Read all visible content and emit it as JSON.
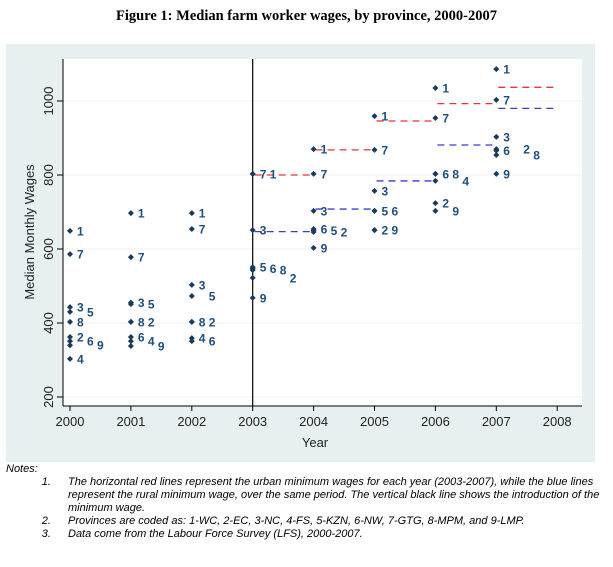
{
  "chart_data": {
    "type": "scatter",
    "title": "Figure 1: Median farm worker wages, by province, 2000-2007",
    "xlabel": "Year",
    "ylabel": "Median Monthly Wages",
    "xlim": [
      2000,
      2008
    ],
    "ylim": [
      200,
      1100
    ],
    "xticks": [
      "2000",
      "2001",
      "2002",
      "2003",
      "2004",
      "2005",
      "2006",
      "2007",
      "2008"
    ],
    "yticks": [
      "200",
      "400",
      "600",
      "800",
      "1000"
    ],
    "grid": true,
    "minimum_wage_introduction_year": 2003,
    "points": [
      {
        "year": 2000,
        "province": "1",
        "value": 649
      },
      {
        "year": 2000,
        "province": "7",
        "value": 586
      },
      {
        "year": 2000,
        "province": "3",
        "value": 443
      },
      {
        "year": 2000,
        "province": "5",
        "value": 430
      },
      {
        "year": 2000,
        "province": "8",
        "value": 403
      },
      {
        "year": 2000,
        "province": "2",
        "value": 362
      },
      {
        "year": 2000,
        "province": "6",
        "value": 351
      },
      {
        "year": 2000,
        "province": "9",
        "value": 340
      },
      {
        "year": 2000,
        "province": "4",
        "value": 303
      },
      {
        "year": 2001,
        "province": "1",
        "value": 697
      },
      {
        "year": 2001,
        "province": "7",
        "value": 578
      },
      {
        "year": 2001,
        "province": "3",
        "value": 455
      },
      {
        "year": 2001,
        "province": "5",
        "value": 451
      },
      {
        "year": 2001,
        "province": "8",
        "value": 403
      },
      {
        "year": 2001,
        "province": "2",
        "value": 403
      },
      {
        "year": 2001,
        "province": "6",
        "value": 362
      },
      {
        "year": 2001,
        "province": "4",
        "value": 351
      },
      {
        "year": 2001,
        "province": "9",
        "value": 338
      },
      {
        "year": 2002,
        "province": "1",
        "value": 697
      },
      {
        "year": 2002,
        "province": "7",
        "value": 654
      },
      {
        "year": 2002,
        "province": "3",
        "value": 503
      },
      {
        "year": 2002,
        "province": "5",
        "value": 473
      },
      {
        "year": 2002,
        "province": "8",
        "value": 403
      },
      {
        "year": 2002,
        "province": "2",
        "value": 403
      },
      {
        "year": 2002,
        "province": "4",
        "value": 359
      },
      {
        "year": 2002,
        "province": "6",
        "value": 351
      },
      {
        "year": 2003,
        "province": "7",
        "value": 803
      },
      {
        "year": 2003,
        "province": "1",
        "value": 803
      },
      {
        "year": 2003,
        "province": "3",
        "value": 651
      },
      {
        "year": 2003,
        "province": "5",
        "value": 551
      },
      {
        "year": 2003,
        "province": "6",
        "value": 547
      },
      {
        "year": 2003,
        "province": "8",
        "value": 543
      },
      {
        "year": 2003,
        "province": "2",
        "value": 522
      },
      {
        "year": 2003,
        "province": "9",
        "value": 468
      },
      {
        "year": 2004,
        "province": "1",
        "value": 870
      },
      {
        "year": 2004,
        "province": "7",
        "value": 803
      },
      {
        "year": 2004,
        "province": "3",
        "value": 703
      },
      {
        "year": 2004,
        "province": "6",
        "value": 654
      },
      {
        "year": 2004,
        "province": "5",
        "value": 650
      },
      {
        "year": 2004,
        "province": "2",
        "value": 646
      },
      {
        "year": 2004,
        "province": "9",
        "value": 603
      },
      {
        "year": 2005,
        "province": "1",
        "value": 959
      },
      {
        "year": 2005,
        "province": "7",
        "value": 868
      },
      {
        "year": 2005,
        "province": "3",
        "value": 757
      },
      {
        "year": 2005,
        "province": "5",
        "value": 703
      },
      {
        "year": 2005,
        "province": "6",
        "value": 703
      },
      {
        "year": 2005,
        "province": "2",
        "value": 651
      },
      {
        "year": 2005,
        "province": "9",
        "value": 651
      },
      {
        "year": 2006,
        "province": "1",
        "value": 1035
      },
      {
        "year": 2006,
        "province": "7",
        "value": 954
      },
      {
        "year": 2006,
        "province": "6",
        "value": 803
      },
      {
        "year": 2006,
        "province": "8",
        "value": 803
      },
      {
        "year": 2006,
        "province": "4",
        "value": 784
      },
      {
        "year": 2006,
        "province": "2",
        "value": 724
      },
      {
        "year": 2006,
        "province": "9",
        "value": 703
      },
      {
        "year": 2007,
        "province": "1",
        "value": 1086
      },
      {
        "year": 2007,
        "province": "7",
        "value": 1003
      },
      {
        "year": 2007,
        "province": "3",
        "value": 903
      },
      {
        "year": 2007,
        "province": "2",
        "value": 870
      },
      {
        "year": 2007,
        "province": "6",
        "value": 866
      },
      {
        "year": 2007,
        "province": "8",
        "value": 854
      },
      {
        "year": 2007,
        "province": "9",
        "value": 803
      }
    ],
    "urban_minimum_wage": [
      {
        "from": 2003,
        "to": 2004,
        "value": 800
      },
      {
        "from": 2004,
        "to": 2005,
        "value": 868
      },
      {
        "from": 2005,
        "to": 2006,
        "value": 946
      },
      {
        "from": 2006,
        "to": 2007,
        "value": 993
      },
      {
        "from": 2007,
        "to": 2008,
        "value": 1037
      }
    ],
    "rural_minimum_wage": [
      {
        "from": 2003,
        "to": 2004,
        "value": 647
      },
      {
        "from": 2004,
        "to": 2005,
        "value": 708
      },
      {
        "from": 2005,
        "to": 2006,
        "value": 784
      },
      {
        "from": 2006,
        "to": 2007,
        "value": 881
      },
      {
        "from": 2007,
        "to": 2008,
        "value": 980
      }
    ],
    "colors": {
      "point": "#1a3a5c",
      "label": "#1f4e79",
      "urban": "#e8343f",
      "rural": "#3b3bd6",
      "bg": "#e8eff1"
    }
  },
  "notes": {
    "heading": "Notes:",
    "items": [
      "The horizontal red lines represent the urban minimum wages for each year (2003-2007), while the blue lines represent the rural minimum wage, over the same period. The vertical black line shows the introduction of the minimum wage.",
      "Provinces are coded as: 1-WC, 2-EC, 3-NC, 4-FS, 5-KZN, 6-NW, 7-GTG, 8-MPM, and 9-LMP.",
      "Data come from the Labour Force Survey (LFS), 2000-2007."
    ]
  }
}
